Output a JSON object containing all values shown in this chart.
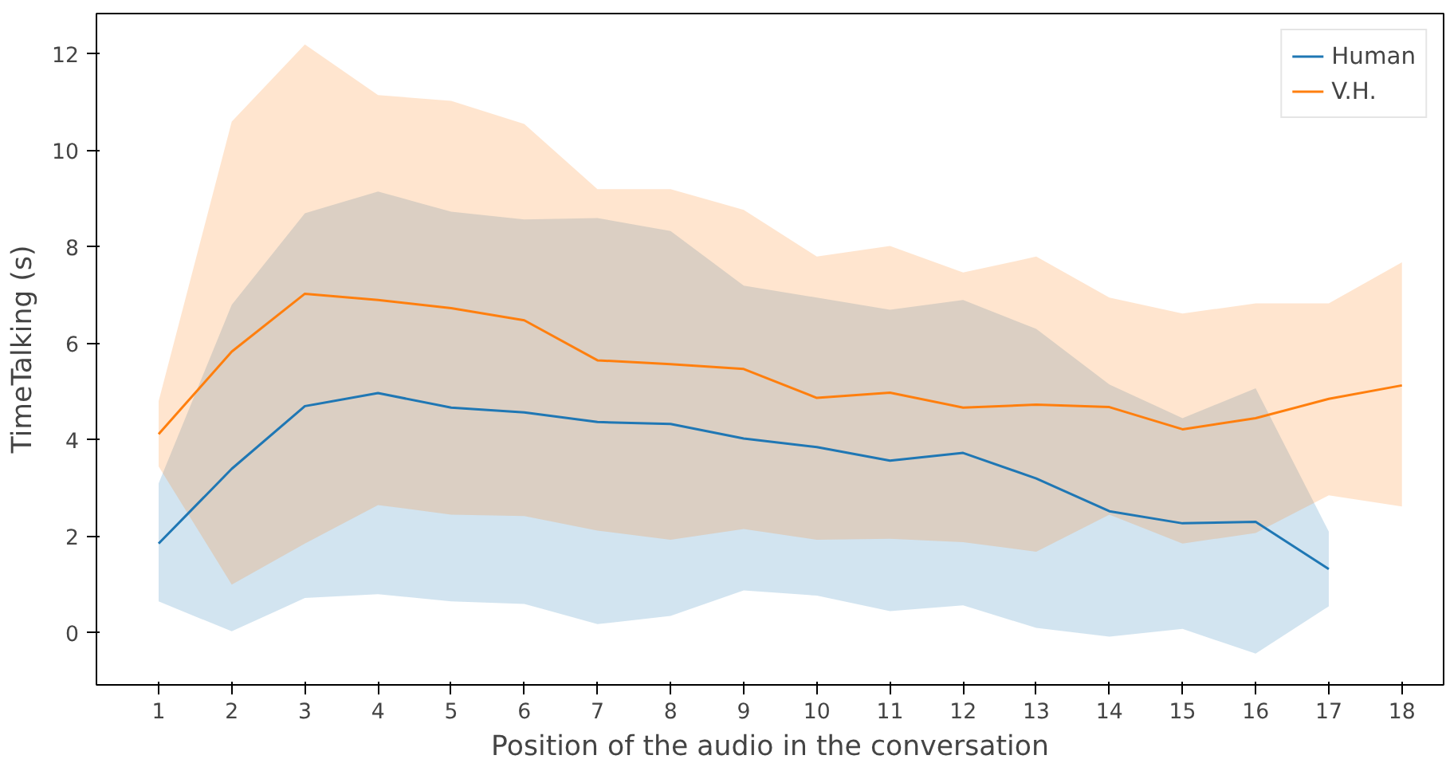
{
  "chart_data": {
    "type": "line",
    "xlabel": "Position of the audio in the conversation",
    "ylabel": "TimeTalking (s)",
    "x": [
      1,
      2,
      3,
      4,
      5,
      6,
      7,
      8,
      9,
      10,
      11,
      12,
      13,
      14,
      15,
      16,
      17,
      18
    ],
    "series": [
      {
        "name": "Human",
        "color": "#1f77b4",
        "x": [
          1,
          2,
          3,
          4,
          5,
          6,
          7,
          8,
          9,
          10,
          11,
          12,
          13,
          14,
          15,
          16,
          17
        ],
        "values": [
          1.85,
          3.4,
          4.7,
          4.97,
          4.67,
          4.57,
          4.37,
          4.33,
          4.03,
          3.85,
          3.57,
          3.73,
          3.2,
          2.52,
          2.27,
          2.3,
          1.32
        ],
        "upper": [
          3.1,
          6.8,
          8.7,
          9.15,
          8.73,
          8.57,
          8.6,
          8.33,
          7.2,
          6.95,
          6.7,
          6.9,
          6.3,
          5.15,
          4.45,
          5.07,
          2.1
        ],
        "lower": [
          0.65,
          0.03,
          0.72,
          0.8,
          0.65,
          0.6,
          0.18,
          0.35,
          0.88,
          0.77,
          0.45,
          0.57,
          0.1,
          -0.08,
          0.08,
          -0.43,
          0.55
        ]
      },
      {
        "name": "V.H.",
        "color": "#ff7f0e",
        "values": [
          4.12,
          5.83,
          7.03,
          6.9,
          6.73,
          6.48,
          5.65,
          5.57,
          5.47,
          4.87,
          4.98,
          4.67,
          4.73,
          4.68,
          4.22,
          4.45,
          4.85,
          5.13
        ],
        "upper": [
          4.8,
          10.6,
          12.2,
          11.15,
          11.03,
          10.55,
          9.2,
          9.2,
          8.77,
          7.8,
          8.02,
          7.47,
          7.8,
          6.95,
          6.62,
          6.83,
          6.83,
          7.68
        ],
        "lower": [
          3.45,
          1.0,
          1.85,
          2.65,
          2.45,
          2.42,
          2.12,
          1.93,
          2.15,
          1.93,
          1.95,
          1.88,
          1.68,
          2.45,
          1.85,
          2.07,
          2.85,
          2.62
        ]
      }
    ],
    "xlim": [
      0.15,
      18.57
    ],
    "ylim": [
      -1.08,
      12.84
    ],
    "xticks": [
      1,
      2,
      3,
      4,
      5,
      6,
      7,
      8,
      9,
      10,
      11,
      12,
      13,
      14,
      15,
      16,
      17,
      18
    ],
    "yticks": [
      0,
      2,
      4,
      6,
      8,
      10,
      12
    ],
    "grid": false,
    "legend": "top right"
  }
}
